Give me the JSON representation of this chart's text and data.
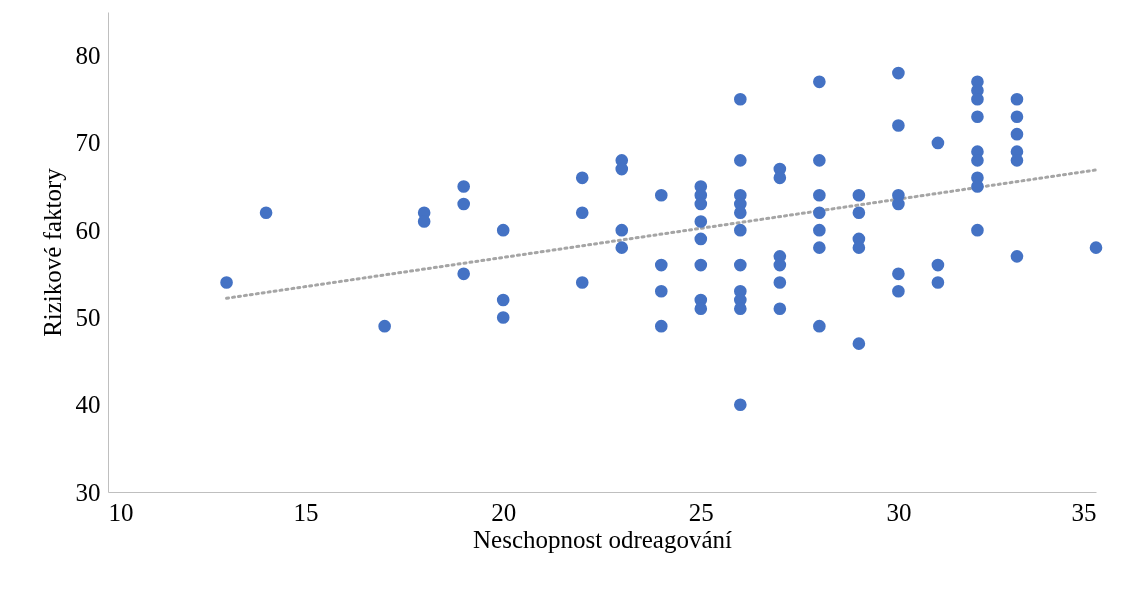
{
  "chart_data": {
    "type": "scatter",
    "xlabel": "Neschopnost odreagování",
    "ylabel": "Rizikové faktory",
    "xlim": [
      10,
      35
    ],
    "xticks": [
      10,
      15,
      20,
      25,
      30,
      35
    ],
    "ylim": [
      30,
      85
    ],
    "yticks": [
      30,
      40,
      50,
      60,
      70,
      80
    ],
    "grid": false,
    "series": [
      {
        "color": "#4472c4",
        "marker": "circle",
        "x": [
          13,
          14,
          17,
          18,
          18,
          19,
          19,
          19,
          20,
          20,
          20,
          22,
          22,
          22,
          23,
          23,
          23,
          23,
          24,
          24,
          24,
          24,
          25,
          25,
          25,
          25,
          25,
          25,
          25,
          25,
          26,
          26,
          26,
          26,
          26,
          26,
          26,
          26,
          26,
          26,
          26,
          27,
          27,
          27,
          27,
          27,
          27,
          28,
          28,
          28,
          28,
          28,
          28,
          28,
          29,
          29,
          29,
          29,
          29,
          30,
          30,
          30,
          30,
          30,
          30,
          31,
          31,
          31,
          32,
          32,
          32,
          32,
          32,
          32,
          32,
          32,
          32,
          33,
          33,
          33,
          33,
          33,
          33,
          35
        ],
        "values": [
          54,
          62,
          49,
          62,
          61,
          65,
          63,
          55,
          60,
          52,
          50,
          66,
          62,
          54,
          68,
          67,
          60,
          58,
          64,
          56,
          53,
          49,
          65,
          64,
          63,
          61,
          59,
          56,
          52,
          51,
          75,
          68,
          64,
          63,
          62,
          60,
          56,
          53,
          52,
          51,
          40,
          67,
          66,
          57,
          56,
          54,
          51,
          77,
          68,
          64,
          62,
          60,
          58,
          49,
          64,
          62,
          59,
          58,
          47,
          78,
          72,
          64,
          63,
          55,
          53,
          70,
          56,
          54,
          77,
          76,
          75,
          73,
          69,
          68,
          66,
          65,
          60,
          75,
          73,
          71,
          69,
          68,
          57,
          58
        ]
      },
      {
        "type": "line",
        "color": "#a5a5a5",
        "line_style": "dotted",
        "x": [
          13,
          35
        ],
        "values": [
          52.2,
          66.9
        ]
      }
    ]
  }
}
